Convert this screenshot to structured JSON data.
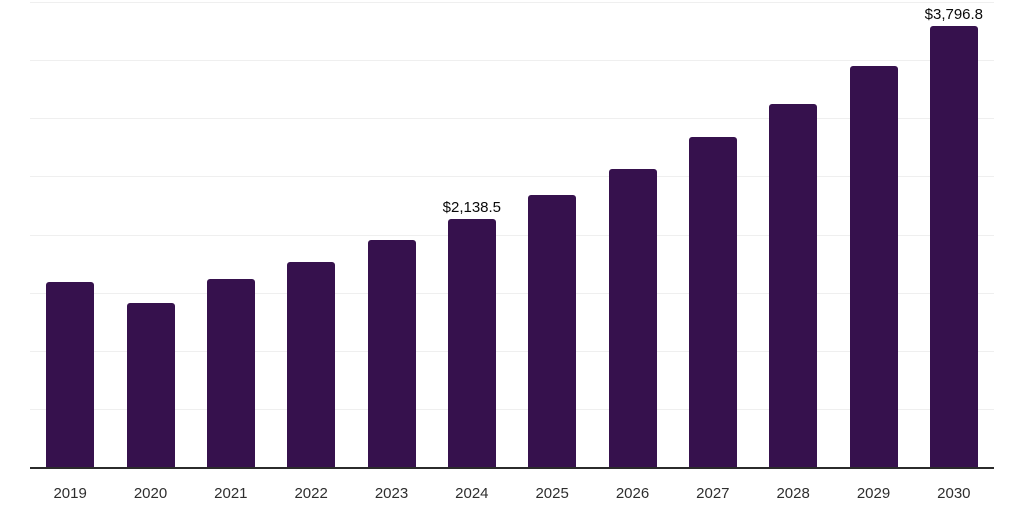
{
  "page": {
    "background_color": "#ffffff"
  },
  "chart_data": {
    "type": "bar",
    "title": "",
    "xlabel": "",
    "ylabel": "",
    "categories": [
      "2019",
      "2020",
      "2021",
      "2022",
      "2023",
      "2024",
      "2025",
      "2026",
      "2027",
      "2028",
      "2029",
      "2030"
    ],
    "values": [
      1597,
      1417,
      1620,
      1771,
      1957,
      2138.5,
      2343,
      2567,
      2841,
      3125,
      3451,
      3796.8
    ],
    "point_labels": [
      "",
      "",
      "",
      "",
      "",
      "$2,138.5",
      "",
      "",
      "",
      "",
      "",
      "$3,796.8"
    ],
    "ylim": [
      0,
      4000
    ],
    "gridline_step": 500,
    "grid": "horizontal-only",
    "y_axis_tick_labels_visible": false,
    "legend": "none",
    "colors": {
      "bar": "#36114D",
      "gridline": "#efefef",
      "axis_line": "#2b2b2b",
      "data_label": "#0a0a0a",
      "tick_label": "#2e2e2e"
    }
  }
}
